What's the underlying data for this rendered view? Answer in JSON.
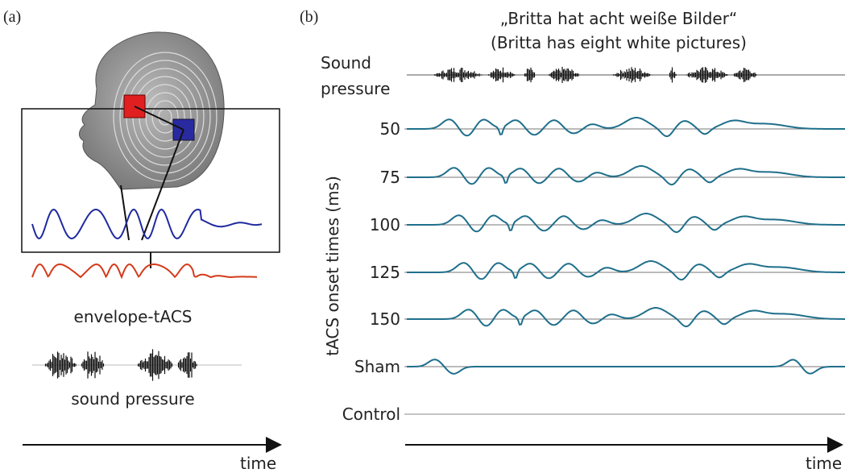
{
  "panel_a": {
    "label": "(a)",
    "envelope_label": "envelope-tACS",
    "sound_label": "sound pressure",
    "time_label": "time"
  },
  "panel_b": {
    "label": "(b)",
    "title": [
      "„Britta hat acht weiße Bilder“",
      "(Britta has eight white pictures)"
    ],
    "sound_label": [
      "Sound",
      "pressure"
    ],
    "axis_label": "tACS onset times (ms)",
    "rows": [
      "50",
      "75",
      "100",
      "125",
      "150",
      "Sham",
      "Control"
    ],
    "time_label": "time"
  }
}
